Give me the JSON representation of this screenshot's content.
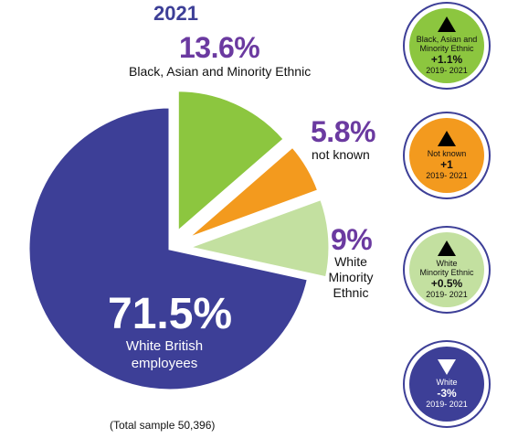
{
  "chart_data": {
    "type": "pie",
    "title": "2021",
    "slices": [
      {
        "label": "White British employees",
        "value": 71.5,
        "display": "71.5%",
        "color": "#3d3f97",
        "explode": false
      },
      {
        "label": "Black, Asian and Minority Ethnic",
        "value": 13.6,
        "display": "13.6%",
        "color": "#8cc63f",
        "explode": true
      },
      {
        "label": "not known",
        "value": 5.8,
        "display": "5.8%",
        "color": "#f39a1e",
        "explode": true
      },
      {
        "label": "White Minority Ethnic",
        "value": 9,
        "display": "9%",
        "color": "#c3e0a0",
        "explode": true
      }
    ],
    "note": "(Total sample 50,396)",
    "labels": {
      "wbe_pct": "71.5%",
      "wbe_line1": "White British",
      "wbe_line2": "employees",
      "bame_pct": "13.6%",
      "bame_label": "Black, Asian and Minority Ethnic",
      "nk_pct": "5.8%",
      "nk_label": "not known",
      "wme_pct": "9%",
      "wme_line1": "White",
      "wme_line2": "Minority",
      "wme_line3": "Ethnic"
    }
  },
  "badges": [
    {
      "name_line1": "Black, Asian and",
      "name_line2": "Minority Ethnic",
      "change": "+1.1%",
      "period": "2019- 2021",
      "direction": "up",
      "color": "#8cc63f"
    },
    {
      "name_line1": "Not known",
      "name_line2": "",
      "change": "+1",
      "period": "2019- 2021",
      "direction": "up",
      "color": "#f39a1e"
    },
    {
      "name_line1": "White",
      "name_line2": "Minority Ethnic",
      "change": "+0.5%",
      "period": "2019- 2021",
      "direction": "up",
      "color": "#c3e0a0"
    },
    {
      "name_line1": "White",
      "name_line2": "",
      "change": "-3%",
      "period": "2019- 2021",
      "direction": "down",
      "color": "#3d3f97"
    }
  ]
}
